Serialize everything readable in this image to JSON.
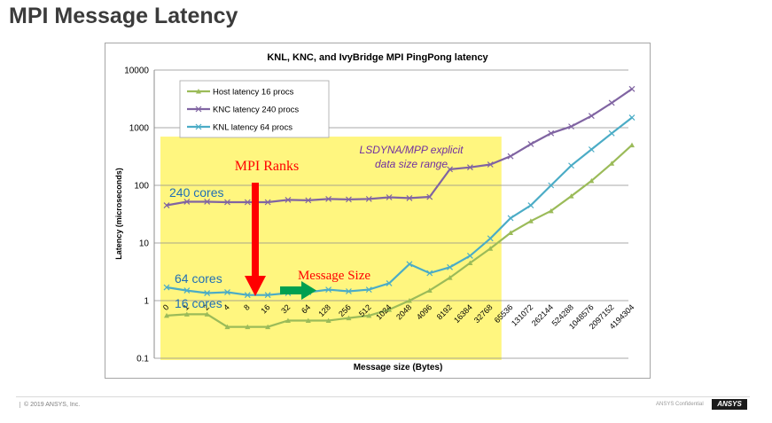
{
  "slide": {
    "title": "MPI Message Latency",
    "footer_left": "© 2019 ANSYS, Inc.",
    "footer_confidential": "ANSYS Confidential",
    "footer_logo": "ANSYS"
  },
  "chart_data": {
    "type": "line",
    "title": "KNL, KNC, and IvyBridge  MPI PingPong latency",
    "xlabel": "Message size (Bytes)",
    "ylabel": "Latency (microseconds)",
    "yscale": "log",
    "ylim": [
      0.1,
      10000
    ],
    "yticks": [
      "0.1",
      "1",
      "10",
      "100",
      "1000",
      "10000"
    ],
    "categories": [
      "0",
      "1",
      "2",
      "4",
      "8",
      "16",
      "32",
      "64",
      "128",
      "256",
      "512",
      "1024",
      "2048",
      "4096",
      "8192",
      "16384",
      "32768",
      "65536",
      "131072",
      "262144",
      "524288",
      "1048576",
      "2097152",
      "4194304"
    ],
    "series": [
      {
        "name": "Host latency 16 procs",
        "color": "#9bbb59",
        "marker": "triangle",
        "values": [
          0.55,
          0.58,
          0.58,
          0.35,
          0.35,
          0.35,
          0.45,
          0.45,
          0.45,
          0.5,
          0.55,
          0.7,
          1.0,
          1.5,
          2.5,
          4.5,
          8,
          15,
          24,
          36,
          65,
          120,
          240,
          500
        ]
      },
      {
        "name": "KNC latency 240 procs",
        "color": "#8064a2",
        "marker": "x",
        "values": [
          45,
          52,
          52,
          51,
          51,
          51,
          56,
          55,
          58,
          57,
          58,
          62,
          60,
          63,
          190,
          205,
          230,
          320,
          520,
          800,
          1050,
          1600,
          2700,
          4700
        ]
      },
      {
        "name": "KNL latency 64 procs",
        "color": "#4bacc6",
        "marker": "x",
        "values": [
          1.7,
          1.5,
          1.35,
          1.4,
          1.25,
          1.25,
          1.35,
          1.4,
          1.55,
          1.45,
          1.55,
          2.0,
          4.3,
          3.0,
          3.8,
          6.0,
          12,
          27,
          45,
          100,
          220,
          420,
          800,
          1500
        ]
      }
    ],
    "legend": "top-left",
    "grid": true,
    "annotations": {
      "highlight": "Message sizes 0 – 32768 bytes",
      "range_label_line1": "LSDYNA/MPP explicit",
      "range_label_line2": "data size range",
      "mpi_ranks": "MPI Ranks",
      "message_size": "Message Size",
      "cores_240": "240 cores",
      "cores_64": "64 cores",
      "cores_16": "16 cores"
    }
  }
}
